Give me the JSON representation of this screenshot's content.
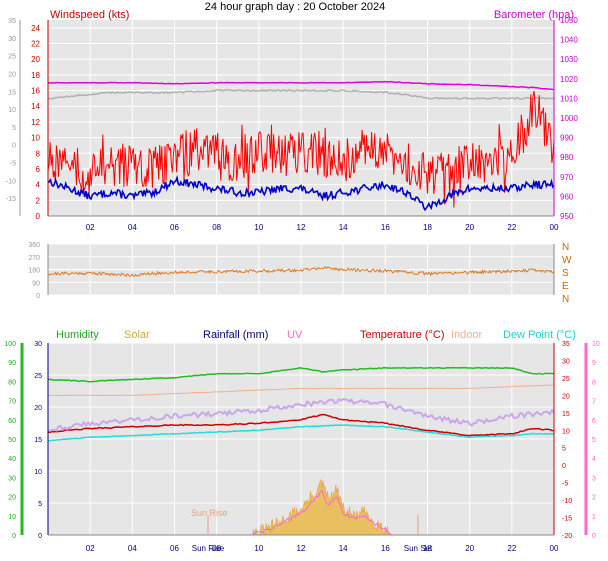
{
  "title": "24 hour graph day : 20 October 2024",
  "colors": {
    "wind": "#ff0000",
    "gust": "#0000cc",
    "baro": "#e000e0",
    "baro_grey": "#b0b0b0",
    "dir": "#e07820",
    "humidity": "#22bb22",
    "solar": "#e8c060",
    "rain": "#000080",
    "uv": "#ff66cc",
    "temperature": "#cc0000",
    "indoor": "#f0b090",
    "dewpoint": "#22dddd",
    "plot_bg": "#e6e6e6",
    "grid": "#ffffff"
  },
  "chart_data": [
    {
      "type": "line",
      "id": "wind-baro",
      "series_labels": {
        "left": "Windspeed (kts)",
        "right": "Barometer (hpa)"
      },
      "x_ticks": [
        "02",
        "04",
        "06",
        "08",
        "10",
        "12",
        "14",
        "16",
        "18",
        "20",
        "22",
        "00"
      ],
      "y_left_outer": {
        "range": [
          -20,
          35
        ],
        "ticks": [
          -15,
          -10,
          -5,
          0,
          5,
          10,
          15,
          20,
          25,
          30,
          35
        ]
      },
      "y_left_wind": {
        "range": [
          0,
          25
        ],
        "ticks": [
          0,
          2,
          4,
          6,
          8,
          10,
          12,
          14,
          16,
          18,
          20,
          22,
          24
        ]
      },
      "y_right_baro": {
        "range": [
          950,
          1050
        ],
        "ticks": [
          950,
          960,
          970,
          980,
          990,
          1000,
          1010,
          1020,
          1030,
          1040,
          1050
        ]
      },
      "series": [
        {
          "name": "Barometer",
          "kind": "baro",
          "x": [
            0,
            2,
            4,
            6,
            8,
            10,
            12,
            14,
            16,
            18,
            20,
            22,
            23,
            24
          ],
          "values": [
            1018,
            1018,
            1018,
            1017.5,
            1018,
            1018,
            1018,
            1018,
            1018.5,
            1017.5,
            1017,
            1016,
            1015.5,
            1014.5
          ]
        },
        {
          "name": "Barometer (grey)",
          "kind": "baro_grey",
          "x": [
            0,
            1,
            2,
            3,
            4,
            5,
            6,
            8,
            10,
            12,
            14,
            16,
            17,
            18,
            20,
            22,
            23,
            24
          ],
          "values": [
            1010,
            1011,
            1012,
            1013,
            1013,
            1013,
            1013,
            1014,
            1014,
            1014,
            1014,
            1013,
            1012,
            1010,
            1010,
            1010,
            1010,
            1010
          ]
        },
        {
          "name": "Wind",
          "kind": "wind",
          "x": [
            0,
            1,
            2,
            3,
            4,
            5,
            6,
            7,
            8,
            9,
            10,
            11,
            12,
            13,
            14,
            15,
            16,
            17,
            18,
            19,
            20,
            21,
            22,
            22.5,
            23,
            23.5,
            24
          ],
          "values": [
            7,
            6,
            5.5,
            6,
            6,
            6,
            7,
            8,
            7.5,
            7,
            7.5,
            7.5,
            8,
            7.5,
            7,
            7.5,
            7.5,
            7,
            4.5,
            5,
            6,
            6.5,
            7,
            10,
            14,
            11,
            9
          ]
        },
        {
          "name": "Gust",
          "kind": "gust",
          "x": [
            0,
            1,
            2,
            3,
            4,
            5,
            6,
            7,
            8,
            9,
            10,
            11,
            12,
            13,
            14,
            15,
            16,
            17,
            18,
            19,
            20,
            21,
            22,
            23,
            24
          ],
          "values": [
            4.5,
            3.5,
            2.5,
            3,
            2.5,
            3,
            4.5,
            4,
            3.5,
            3,
            3,
            3.5,
            3.5,
            2.5,
            3,
            3.5,
            4,
            3,
            1,
            2.5,
            3.5,
            3.5,
            3.5,
            4,
            4
          ]
        }
      ]
    },
    {
      "type": "line",
      "id": "direction",
      "y_left": {
        "range": [
          0,
          360
        ],
        "ticks": [
          0,
          90,
          180,
          270,
          360
        ]
      },
      "y_right_labels": [
        "N",
        "E",
        "S",
        "W",
        "N"
      ],
      "series": [
        {
          "name": "Wind direction",
          "kind": "dir",
          "x": [
            0,
            2,
            4,
            6,
            8,
            10,
            12,
            13,
            14,
            16,
            18,
            20,
            22,
            23,
            24
          ],
          "values": [
            150,
            155,
            140,
            160,
            165,
            170,
            175,
            190,
            180,
            170,
            150,
            160,
            170,
            175,
            165
          ]
        }
      ]
    },
    {
      "type": "line",
      "id": "temp-humidity",
      "legend": [
        "Humidity",
        "Solar",
        "Rainfall (mm)",
        "UV",
        "Temperature (°C)",
        "Indoor",
        "Dew Point (°C)"
      ],
      "x_ticks": [
        "02",
        "04",
        "06",
        "08",
        "10",
        "12",
        "14",
        "16",
        "18",
        "20",
        "22",
        "00"
      ],
      "annotations": [
        "Sun Rise",
        "Sun Rise",
        "Sun Set"
      ],
      "y_humidity": {
        "range": [
          0,
          100
        ],
        "ticks": [
          0,
          10,
          20,
          30,
          40,
          50,
          60,
          70,
          80,
          90,
          100
        ]
      },
      "y_rain_solar": {
        "range": [
          0,
          30
        ],
        "ticks": [
          0,
          5,
          10,
          15,
          20,
          25,
          30
        ]
      },
      "y_temp": {
        "range": [
          -20,
          35
        ],
        "ticks": [
          -20,
          -15,
          -10,
          -5,
          0,
          5,
          10,
          15,
          20,
          25,
          30,
          35
        ]
      },
      "y_uv": {
        "range": [
          0,
          10
        ],
        "ticks": [
          0,
          1,
          2,
          3,
          4,
          5,
          6,
          7,
          8,
          9,
          10
        ]
      },
      "series": [
        {
          "name": "Humidity",
          "kind": "humidity",
          "x": [
            0,
            2,
            4,
            6,
            8,
            10,
            12,
            13,
            14,
            16,
            18,
            20,
            22,
            23,
            24
          ],
          "values": [
            81,
            80,
            81,
            82,
            84,
            84,
            87,
            85,
            86,
            87,
            87,
            87,
            87,
            84,
            84
          ]
        },
        {
          "name": "Indoor",
          "kind": "indoor",
          "x": [
            0,
            4,
            8,
            12,
            16,
            20,
            24
          ],
          "values": [
            20,
            20,
            21,
            22,
            22,
            22,
            23
          ]
        },
        {
          "name": "Temperature",
          "kind": "temperature",
          "x": [
            0,
            1,
            2,
            4,
            6,
            8,
            10,
            12,
            13,
            14,
            16,
            18,
            20,
            22,
            23,
            24
          ],
          "values": [
            9.5,
            10,
            10.5,
            11,
            11.5,
            11.5,
            12,
            13,
            14.5,
            13,
            12,
            10,
            8.5,
            9,
            10.5,
            10
          ]
        },
        {
          "name": "UV",
          "kind": "uv",
          "x": [
            0,
            2,
            4,
            6,
            8,
            10,
            12,
            14,
            16,
            18,
            20,
            22,
            24
          ],
          "values": [
            5.5,
            5.8,
            6,
            6.2,
            6.3,
            6.5,
            6.8,
            7,
            6.8,
            6.2,
            5.8,
            6.2,
            6.4
          ]
        },
        {
          "name": "Dew Point",
          "kind": "dewpoint",
          "x": [
            0,
            2,
            4,
            6,
            8,
            10,
            12,
            14,
            16,
            18,
            20,
            22,
            23,
            24
          ],
          "values": [
            7,
            8,
            8.5,
            9,
            9.5,
            10,
            11,
            11.5,
            11,
            9.5,
            8,
            8.5,
            9,
            9
          ]
        },
        {
          "name": "Solar",
          "kind": "solar",
          "x": [
            0,
            9.6,
            10.5,
            11,
            12,
            12.5,
            13,
            13.3,
            13.7,
            14,
            14.5,
            15,
            15.5,
            16,
            16.3,
            24
          ],
          "values": [
            0,
            0,
            1,
            2,
            4,
            6,
            8,
            5.5,
            7,
            4,
            3,
            3.5,
            2,
            1,
            0,
            0
          ]
        }
      ]
    }
  ]
}
